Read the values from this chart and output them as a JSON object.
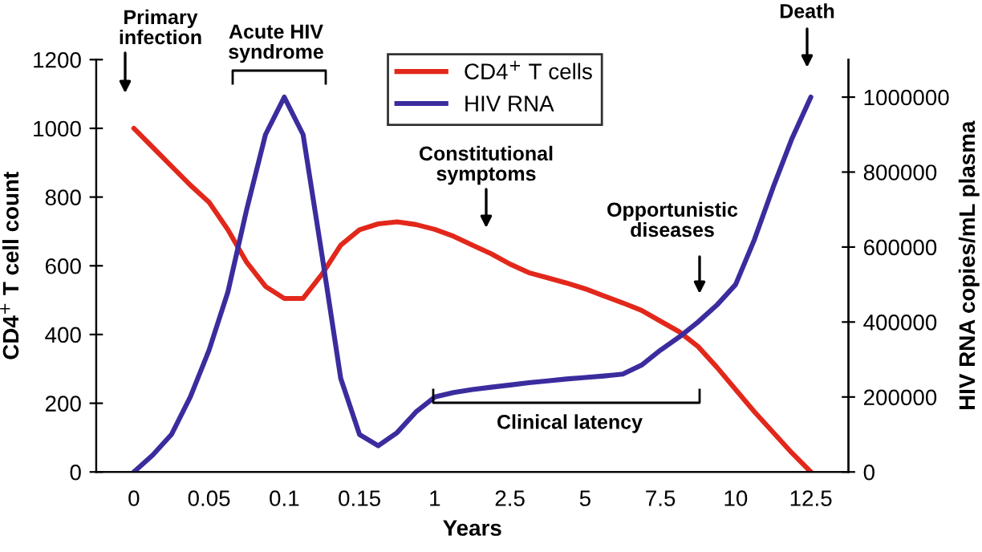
{
  "chart_data": {
    "type": "line",
    "xlabel": "Years",
    "ylabel": "CD4$^{+}$ T cell count",
    "y2label": "HIV RNA copies/mL plasma",
    "categories": [
      "0",
      null,
      null,
      null,
      "0.05",
      null,
      null,
      null,
      "0.1",
      null,
      null,
      null,
      "0.15",
      null,
      null,
      null,
      "1",
      null,
      null,
      null,
      "2.5",
      null,
      null,
      null,
      "5",
      null,
      null,
      null,
      "7.5",
      null,
      null,
      null,
      "10",
      null,
      null,
      null,
      "12.5"
    ],
    "ylim": [
      0,
      1200
    ],
    "yticks": [
      0,
      200,
      400,
      600,
      800,
      1000,
      1200
    ],
    "y2lim": [
      0,
      1100000
    ],
    "y2ticks": [
      0,
      200000,
      400000,
      600000,
      800000,
      1000000
    ],
    "series": [
      {
        "name": "CD4$^{+}$ T cells",
        "color": "#e2281b",
        "values": [
          1000,
          945,
          890,
          835,
          785,
          705,
          610,
          540,
          505,
          505,
          575,
          660,
          705,
          722,
          728,
          720,
          706,
          686,
          660,
          635,
          605,
          580,
          565,
          550,
          533,
          512,
          492,
          470,
          439,
          408,
          365,
          305,
          240,
          175,
          115,
          55,
          0
        ]
      },
      {
        "name": "HIV RNA",
        "color": "#3b2c9e",
        "axis": "y2",
        "values": [
          0,
          45000,
          100000,
          200000,
          325000,
          480000,
          700000,
          900000,
          1000000,
          900000,
          580000,
          250000,
          100000,
          70000,
          105000,
          160000,
          200000,
          212000,
          220000,
          226000,
          232000,
          238000,
          243000,
          248000,
          252000,
          256000,
          261000,
          285000,
          325000,
          360000,
          400000,
          445000,
          500000,
          620000,
          760000,
          890000,
          1000000
        ]
      }
    ],
    "annotations": [
      "Primary\ninfection",
      "Acute HIV\nsyndrome",
      "Constitutional\nsymptoms",
      "Clinical latency",
      "Opportunistic\ndiseases",
      "Death"
    ],
    "legend": "top",
    "marker": "none",
    "line_style": "solid"
  }
}
